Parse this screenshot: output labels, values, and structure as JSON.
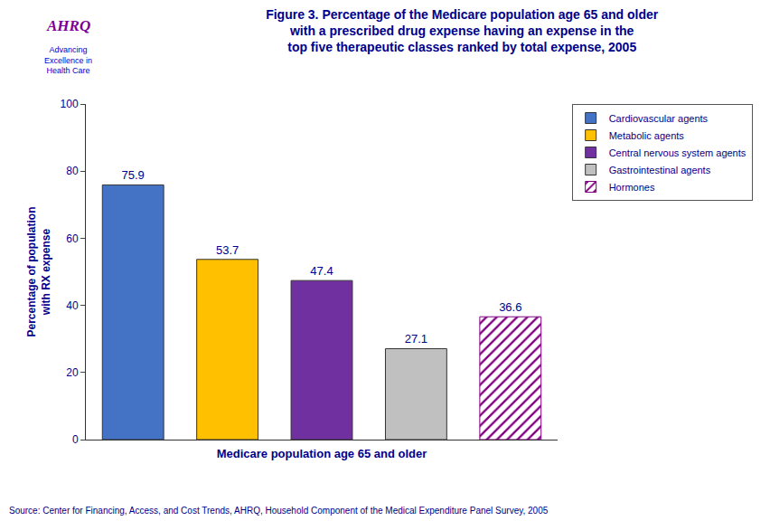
{
  "chart_data": {
    "type": "bar",
    "title": "Figure 3. Percentage of the Medicare population age 65 and older\nwith a prescribed drug expense having an expense in the\ntop five therapeutic classes ranked by total expense, 2005",
    "xlabel": "Medicare population age 65 and older",
    "ylabel": "Percentage of population\nwith RX expense",
    "categories": [
      "Cardiovascular agents",
      "Metabolic agents",
      "Central nervous system agents",
      "Gastrointestinal agents",
      "Hormones"
    ],
    "values": [
      75.9,
      53.7,
      47.4,
      27.1,
      36.6
    ],
    "colors": [
      "#4472C4",
      "#FFC000",
      "#7030A0",
      "#C0C0C0",
      "#FFFFFF"
    ],
    "ylim": [
      0,
      100
    ],
    "yticks": [
      0,
      20,
      40,
      60,
      80,
      100
    ],
    "grid": false,
    "legend": "right",
    "data_labels": true,
    "tick_labels": "y",
    "annotations": [
      "AHRQ",
      "Advancing\nExcellence in\nHealth Care",
      "Source: Center for Financing, Access, and Cost Trends, AHRQ, Household Component of the Medical Expenditure Panel Survey, 2005"
    ]
  }
}
